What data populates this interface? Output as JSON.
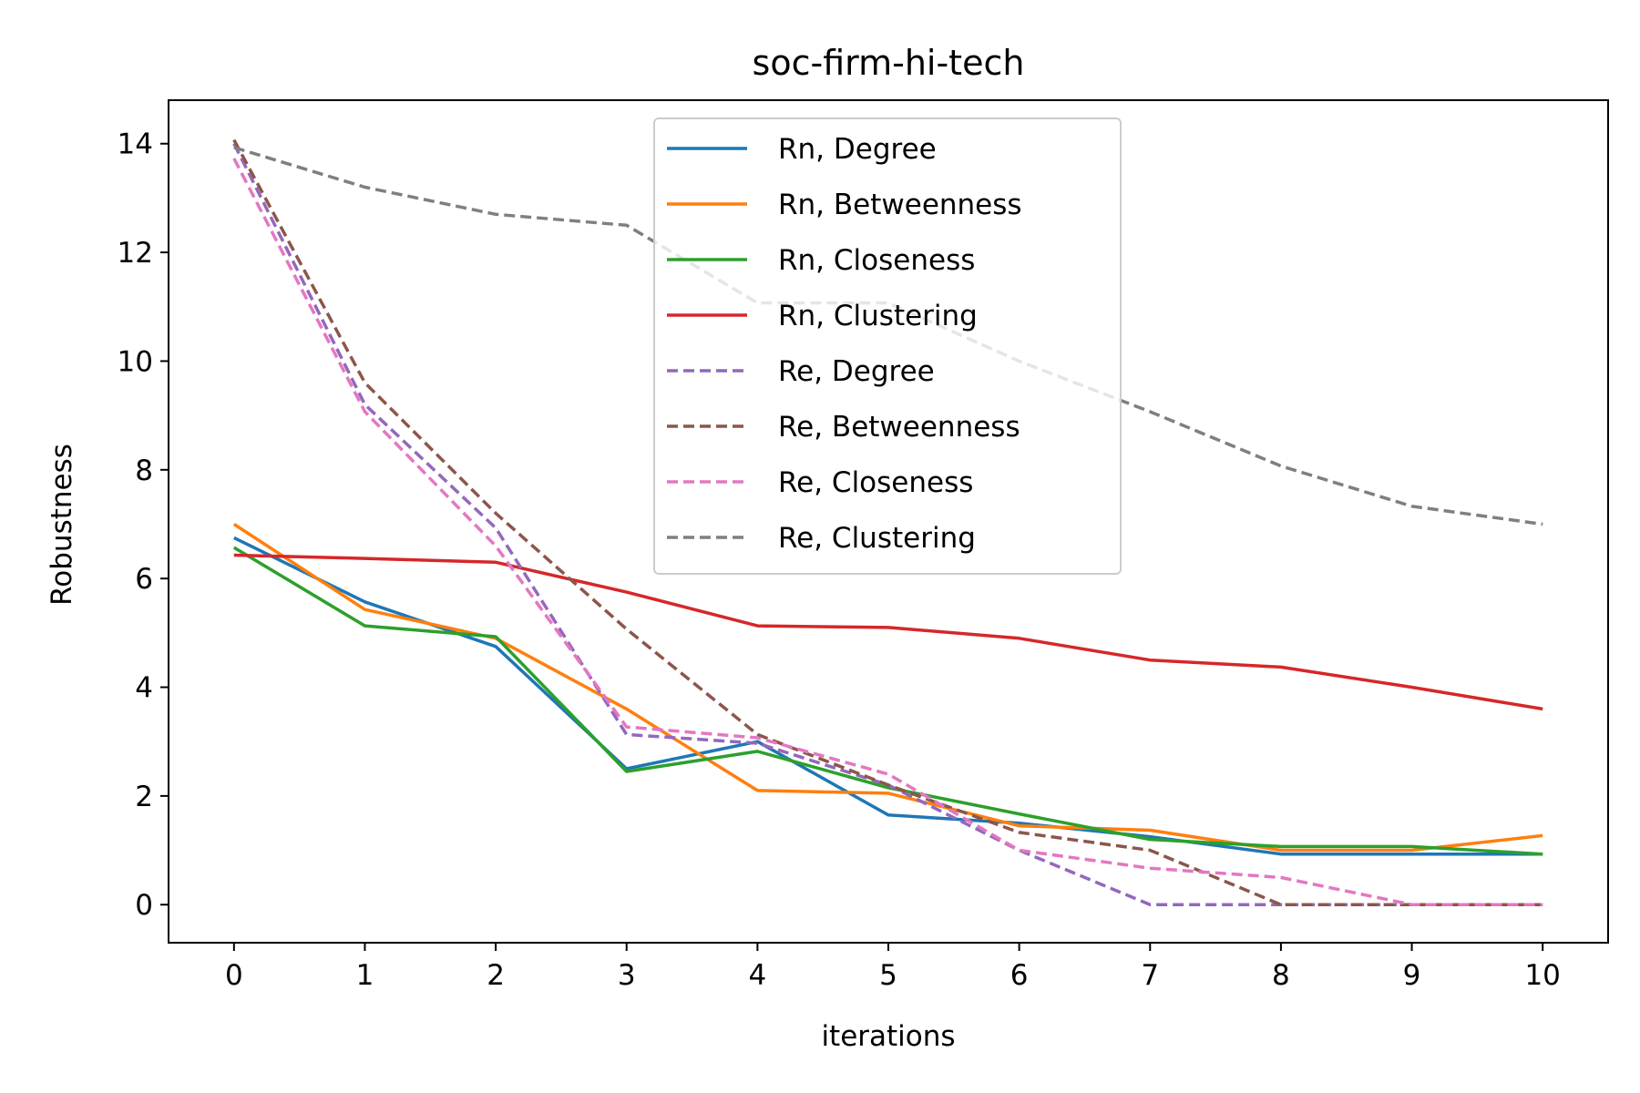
{
  "chart_data": {
    "type": "line",
    "title": "soc-firm-hi-tech",
    "xlabel": "iterations",
    "ylabel": "Robustness",
    "xlim": [
      -0.5,
      10.5
    ],
    "ylim": [
      -0.7,
      14.8
    ],
    "xticks": [
      0,
      1,
      2,
      3,
      4,
      5,
      6,
      7,
      8,
      9,
      10
    ],
    "yticks": [
      0,
      2,
      4,
      6,
      8,
      10,
      12,
      14
    ],
    "grid": false,
    "legend_position": "top-center",
    "x": [
      0,
      1,
      2,
      3,
      4,
      5,
      6,
      7,
      8,
      9,
      10
    ],
    "series": [
      {
        "name": "Rn, Degree",
        "color": "#1f77b4",
        "dash": "solid",
        "values": [
          6.75,
          5.57,
          4.75,
          2.5,
          3.0,
          1.65,
          1.5,
          1.25,
          0.93,
          0.93,
          0.93
        ]
      },
      {
        "name": "Rn, Betweenness",
        "color": "#ff7f0e",
        "dash": "solid",
        "values": [
          7.0,
          5.43,
          4.9,
          3.6,
          2.1,
          2.05,
          1.45,
          1.37,
          1.0,
          1.0,
          1.27
        ]
      },
      {
        "name": "Rn, Closeness",
        "color": "#2ca02c",
        "dash": "solid",
        "values": [
          6.57,
          5.13,
          4.93,
          2.45,
          2.82,
          2.15,
          1.67,
          1.2,
          1.07,
          1.07,
          0.93
        ]
      },
      {
        "name": "Rn, Clustering",
        "color": "#d62728",
        "dash": "solid",
        "values": [
          6.43,
          6.37,
          6.3,
          5.75,
          5.13,
          5.1,
          4.9,
          4.5,
          4.37,
          4.0,
          3.6
        ]
      },
      {
        "name": "Re, Degree",
        "color": "#9467bd",
        "dash": "dashed",
        "values": [
          14.0,
          9.2,
          6.93,
          3.13,
          2.97,
          2.2,
          1.0,
          0.0,
          0.0,
          0.0,
          0.0
        ]
      },
      {
        "name": "Re, Betweenness",
        "color": "#8c564b",
        "dash": "dashed",
        "values": [
          14.07,
          9.6,
          7.2,
          5.07,
          3.13,
          2.2,
          1.33,
          1.0,
          0.0,
          0.0,
          0.0
        ]
      },
      {
        "name": "Re, Closeness",
        "color": "#e377c2",
        "dash": "dashed",
        "values": [
          13.73,
          9.07,
          6.6,
          3.27,
          3.07,
          2.4,
          1.0,
          0.67,
          0.5,
          0.0,
          0.0
        ]
      },
      {
        "name": "Re, Clustering",
        "color": "#7f7f7f",
        "dash": "dashed",
        "values": [
          13.93,
          13.2,
          12.7,
          12.5,
          11.07,
          11.07,
          10.0,
          9.07,
          8.07,
          7.33,
          7.0
        ]
      }
    ]
  }
}
